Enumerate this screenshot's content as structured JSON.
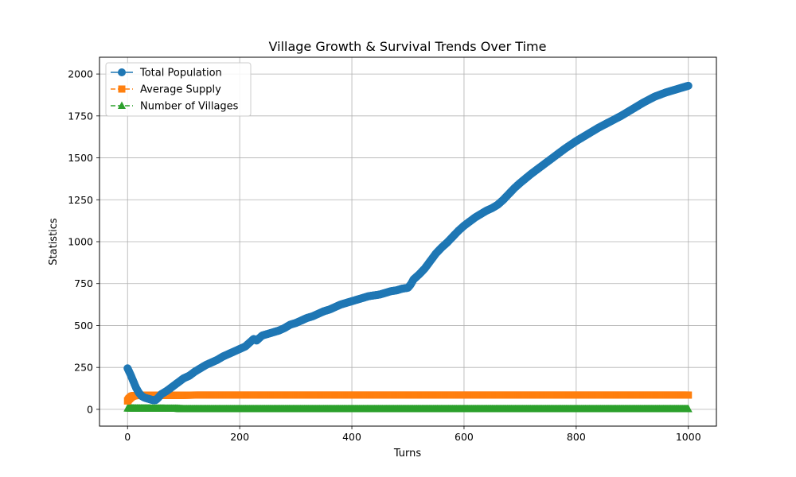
{
  "chart_data": {
    "type": "line",
    "title": "Village Growth & Survival Trends Over Time",
    "xlabel": "Turns",
    "ylabel": "Statistics",
    "xlim": [
      -50,
      1050
    ],
    "ylim": [
      -100,
      2100
    ],
    "xticks": [
      0,
      200,
      400,
      600,
      800,
      1000
    ],
    "yticks": [
      0,
      250,
      500,
      750,
      1000,
      1250,
      1500,
      1750,
      2000
    ],
    "grid": true,
    "legend_position": "top-left",
    "series": [
      {
        "name": "Total Population",
        "color": "#1f77b4",
        "marker": "circle",
        "line_style": "solid",
        "x": [
          0,
          5,
          10,
          15,
          20,
          25,
          30,
          35,
          40,
          45,
          50,
          55,
          60,
          70,
          80,
          90,
          100,
          110,
          120,
          130,
          140,
          150,
          160,
          170,
          180,
          190,
          200,
          210,
          220,
          225,
          230,
          240,
          250,
          260,
          270,
          280,
          290,
          300,
          310,
          320,
          330,
          340,
          350,
          360,
          370,
          380,
          390,
          400,
          410,
          420,
          430,
          440,
          450,
          460,
          470,
          480,
          490,
          500,
          505,
          510,
          520,
          530,
          540,
          550,
          560,
          570,
          580,
          590,
          600,
          610,
          620,
          630,
          640,
          650,
          660,
          670,
          680,
          690,
          700,
          720,
          740,
          760,
          780,
          800,
          820,
          840,
          860,
          880,
          900,
          920,
          940,
          960,
          980,
          1000
        ],
        "y": [
          245,
          210,
          170,
          130,
          100,
          80,
          70,
          65,
          60,
          55,
          55,
          70,
          90,
          110,
          135,
          160,
          185,
          200,
          225,
          245,
          265,
          280,
          295,
          315,
          330,
          345,
          360,
          375,
          405,
          420,
          410,
          440,
          450,
          460,
          470,
          485,
          505,
          515,
          530,
          545,
          555,
          570,
          585,
          595,
          610,
          625,
          635,
          645,
          655,
          665,
          675,
          680,
          685,
          695,
          705,
          710,
          720,
          725,
          745,
          775,
          805,
          840,
          885,
          930,
          965,
          995,
          1030,
          1065,
          1095,
          1120,
          1145,
          1165,
          1185,
          1200,
          1220,
          1250,
          1285,
          1320,
          1350,
          1405,
          1455,
          1505,
          1555,
          1600,
          1640,
          1680,
          1715,
          1750,
          1790,
          1830,
          1865,
          1890,
          1910,
          1930
        ]
      },
      {
        "name": "Average Supply",
        "color": "#ff7f0e",
        "marker": "square",
        "line_style": "dashed",
        "x": [
          0,
          2,
          5,
          8,
          12,
          20,
          40,
          80,
          120,
          200,
          300,
          400,
          500,
          600,
          700,
          800,
          900,
          1000
        ],
        "y": [
          50,
          60,
          70,
          78,
          82,
          83,
          84,
          84,
          85,
          85,
          85,
          85,
          85,
          85,
          85,
          85,
          85,
          85
        ]
      },
      {
        "name": "Number of Villages",
        "color": "#2ca02c",
        "marker": "triangle",
        "line_style": "dashed",
        "x": [
          0,
          50,
          90,
          100,
          200,
          400,
          600,
          800,
          1000
        ],
        "y": [
          6,
          5,
          4,
          2,
          2,
          2,
          2,
          2,
          2
        ]
      }
    ]
  }
}
